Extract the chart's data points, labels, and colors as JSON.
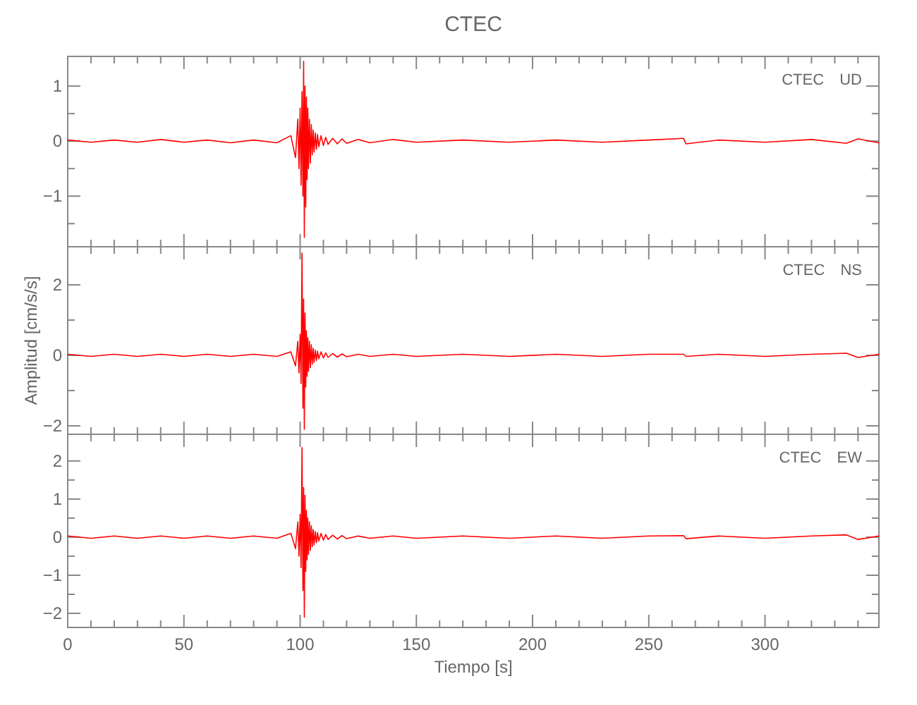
{
  "chart_data": [
    {
      "type": "line",
      "title": "CTEC",
      "annotations": [
        "CTEC UD"
      ],
      "tick_labels": "y",
      "x": [
        0,
        10,
        20,
        30,
        40,
        50,
        60,
        70,
        80,
        90,
        96,
        98,
        99,
        99.5,
        100,
        100.4,
        100.8,
        101.2,
        101.5,
        101.8,
        102.1,
        102.4,
        102.7,
        103,
        103.3,
        103.6,
        104,
        104.4,
        104.8,
        105.2,
        105.6,
        106,
        106.5,
        107,
        107.5,
        108,
        109,
        110,
        111,
        112,
        114,
        116,
        118,
        120,
        125,
        130,
        140,
        150,
        170,
        190,
        210,
        230,
        250,
        265,
        266,
        280,
        300,
        320,
        335,
        340,
        349
      ],
      "series": [
        {
          "color": "#ff0000",
          "values": [
            0.02,
            -0.02,
            0.02,
            -0.02,
            0.03,
            -0.02,
            0.02,
            -0.03,
            0.02,
            -0.03,
            0.1,
            -0.3,
            0.4,
            -0.5,
            0.6,
            -0.8,
            0.9,
            -1.0,
            1.45,
            -1.75,
            1.0,
            -1.2,
            0.8,
            -0.7,
            0.6,
            -0.5,
            0.4,
            -0.4,
            0.3,
            -0.25,
            0.2,
            -0.2,
            0.15,
            -0.15,
            0.12,
            -0.1,
            0.1,
            -0.08,
            0.07,
            -0.06,
            0.05,
            -0.05,
            0.04,
            -0.04,
            0.03,
            -0.03,
            0.03,
            -0.02,
            0.02,
            -0.02,
            0.02,
            -0.02,
            0.02,
            0.05,
            -0.05,
            0.02,
            -0.02,
            0.03,
            -0.04,
            0.04,
            -0.03
          ]
        }
      ],
      "xlim": [
        0,
        349
      ],
      "ylim": [
        -1.92,
        1.54
      ],
      "xticks": [
        0,
        {
          "value": 10,
          "label": null
        },
        {
          "value": 20,
          "label": null
        },
        {
          "value": 30,
          "label": null
        },
        {
          "value": 40,
          "label": null
        },
        50,
        {
          "value": 60,
          "label": null
        },
        {
          "value": 70,
          "label": null
        },
        {
          "value": 80,
          "label": null
        },
        {
          "value": 90,
          "label": null
        },
        100,
        {
          "value": 110,
          "label": null
        },
        {
          "value": 120,
          "label": null
        },
        {
          "value": 130,
          "label": null
        },
        {
          "value": 140,
          "label": null
        },
        150,
        {
          "value": 160,
          "label": null
        },
        {
          "value": 170,
          "label": null
        },
        {
          "value": 180,
          "label": null
        },
        {
          "value": 190,
          "label": null
        },
        200,
        {
          "value": 210,
          "label": null
        },
        {
          "value": 220,
          "label": null
        },
        {
          "value": 230,
          "label": null
        },
        {
          "value": 240,
          "label": null
        },
        250,
        {
          "value": 260,
          "label": null
        },
        {
          "value": 270,
          "label": null
        },
        {
          "value": 280,
          "label": null
        },
        {
          "value": 290,
          "label": null
        },
        300,
        {
          "value": 310,
          "label": null
        },
        {
          "value": 320,
          "label": null
        },
        {
          "value": 330,
          "label": null
        },
        {
          "value": 340,
          "label": null
        }
      ],
      "yticks": [
        {
          "value": -1.5,
          "label": null
        },
        -1,
        {
          "value": -0.5,
          "label": null
        },
        0,
        {
          "value": 0.5,
          "label": null
        },
        1
      ]
    },
    {
      "type": "line",
      "ylabel": "Amplitud [cm/s/s]",
      "annotations": [
        "CTEC NS"
      ],
      "tick_labels": "y",
      "x": [
        0,
        10,
        20,
        30,
        40,
        50,
        60,
        70,
        80,
        90,
        96,
        98,
        99,
        99.5,
        100,
        100.4,
        100.8,
        101.2,
        101.5,
        101.8,
        102.1,
        102.4,
        102.7,
        103,
        103.3,
        103.6,
        104,
        104.4,
        104.8,
        105.2,
        105.6,
        106,
        106.5,
        107,
        107.5,
        108,
        109,
        110,
        111,
        112,
        114,
        116,
        118,
        120,
        125,
        130,
        140,
        150,
        170,
        190,
        210,
        230,
        250,
        265,
        266,
        280,
        300,
        320,
        335,
        340,
        349
      ],
      "series": [
        {
          "color": "#ff0000",
          "values": [
            0.03,
            -0.03,
            0.03,
            -0.03,
            0.03,
            -0.03,
            0.03,
            -0.03,
            0.03,
            -0.03,
            0.1,
            -0.3,
            0.4,
            -0.5,
            0.6,
            -0.8,
            2.9,
            -1.5,
            1.6,
            -2.1,
            1.2,
            -0.9,
            0.7,
            -0.6,
            0.5,
            -0.45,
            0.4,
            -0.35,
            0.3,
            -0.25,
            0.2,
            -0.2,
            0.15,
            -0.15,
            0.12,
            -0.1,
            0.1,
            -0.08,
            0.07,
            -0.06,
            0.05,
            -0.05,
            0.04,
            -0.04,
            0.03,
            -0.03,
            0.03,
            -0.03,
            0.03,
            -0.03,
            0.03,
            -0.03,
            0.03,
            0.03,
            -0.03,
            0.03,
            -0.03,
            0.03,
            0.06,
            -0.06,
            0.03
          ]
        }
      ],
      "xlim": [
        0,
        349
      ],
      "ylim": [
        -2.24,
        3.08
      ],
      "xticks": [
        0,
        {
          "value": 10,
          "label": null
        },
        {
          "value": 20,
          "label": null
        },
        {
          "value": 30,
          "label": null
        },
        {
          "value": 40,
          "label": null
        },
        50,
        {
          "value": 60,
          "label": null
        },
        {
          "value": 70,
          "label": null
        },
        {
          "value": 80,
          "label": null
        },
        {
          "value": 90,
          "label": null
        },
        100,
        {
          "value": 110,
          "label": null
        },
        {
          "value": 120,
          "label": null
        },
        {
          "value": 130,
          "label": null
        },
        {
          "value": 140,
          "label": null
        },
        150,
        {
          "value": 160,
          "label": null
        },
        {
          "value": 170,
          "label": null
        },
        {
          "value": 180,
          "label": null
        },
        {
          "value": 190,
          "label": null
        },
        200,
        {
          "value": 210,
          "label": null
        },
        {
          "value": 220,
          "label": null
        },
        {
          "value": 230,
          "label": null
        },
        {
          "value": 240,
          "label": null
        },
        250,
        {
          "value": 260,
          "label": null
        },
        {
          "value": 270,
          "label": null
        },
        {
          "value": 280,
          "label": null
        },
        {
          "value": 290,
          "label": null
        },
        300,
        {
          "value": 310,
          "label": null
        },
        {
          "value": 320,
          "label": null
        },
        {
          "value": 330,
          "label": null
        },
        {
          "value": 340,
          "label": null
        }
      ],
      "yticks": [
        -2,
        {
          "value": -1,
          "label": null
        },
        0,
        {
          "value": 1,
          "label": null
        },
        2
      ]
    },
    {
      "type": "line",
      "xlabel": "Tiempo [s]",
      "annotations": [
        "CTEC EW"
      ],
      "x": [
        0,
        10,
        20,
        30,
        40,
        50,
        60,
        70,
        80,
        90,
        96,
        98,
        99,
        99.5,
        100,
        100.4,
        100.8,
        101.2,
        101.5,
        101.8,
        102.1,
        102.4,
        102.7,
        103,
        103.3,
        103.6,
        104,
        104.4,
        104.8,
        105.2,
        105.6,
        106,
        106.5,
        107,
        107.5,
        108,
        109,
        110,
        111,
        112,
        114,
        116,
        118,
        120,
        125,
        130,
        140,
        150,
        170,
        190,
        210,
        230,
        250,
        265,
        266,
        280,
        300,
        320,
        335,
        340,
        349
      ],
      "series": [
        {
          "color": "#ff0000",
          "values": [
            0.03,
            -0.03,
            0.03,
            -0.03,
            0.03,
            -0.03,
            0.03,
            -0.03,
            0.03,
            -0.03,
            0.1,
            -0.3,
            0.4,
            -0.5,
            0.6,
            -0.8,
            2.35,
            -1.4,
            1.3,
            -2.1,
            1.1,
            -0.9,
            0.7,
            -0.6,
            0.5,
            -0.45,
            0.4,
            -0.35,
            0.3,
            -0.25,
            0.2,
            -0.2,
            0.15,
            -0.15,
            0.12,
            -0.1,
            0.1,
            -0.08,
            0.07,
            -0.06,
            0.05,
            -0.05,
            0.04,
            -0.04,
            0.03,
            -0.03,
            0.03,
            -0.03,
            0.03,
            -0.03,
            0.03,
            -0.03,
            0.03,
            0.04,
            -0.04,
            0.03,
            -0.03,
            0.03,
            0.06,
            -0.06,
            0.03
          ]
        }
      ],
      "xlim": [
        0,
        349
      ],
      "ylim": [
        -2.37,
        2.7
      ],
      "xticks": [
        0,
        {
          "value": 10,
          "label": null
        },
        {
          "value": 20,
          "label": null
        },
        {
          "value": 30,
          "label": null
        },
        {
          "value": 40,
          "label": null
        },
        50,
        {
          "value": 60,
          "label": null
        },
        {
          "value": 70,
          "label": null
        },
        {
          "value": 80,
          "label": null
        },
        {
          "value": 90,
          "label": null
        },
        100,
        {
          "value": 110,
          "label": null
        },
        {
          "value": 120,
          "label": null
        },
        {
          "value": 130,
          "label": null
        },
        {
          "value": 140,
          "label": null
        },
        150,
        {
          "value": 160,
          "label": null
        },
        {
          "value": 170,
          "label": null
        },
        {
          "value": 180,
          "label": null
        },
        {
          "value": 190,
          "label": null
        },
        200,
        {
          "value": 210,
          "label": null
        },
        {
          "value": 220,
          "label": null
        },
        {
          "value": 230,
          "label": null
        },
        {
          "value": 240,
          "label": null
        },
        250,
        {
          "value": 260,
          "label": null
        },
        {
          "value": 270,
          "label": null
        },
        {
          "value": 280,
          "label": null
        },
        {
          "value": 290,
          "label": null
        },
        300,
        {
          "value": 310,
          "label": null
        },
        {
          "value": 320,
          "label": null
        },
        {
          "value": 330,
          "label": null
        },
        {
          "value": 340,
          "label": null
        }
      ],
      "yticks": [
        -2,
        {
          "value": -1.5,
          "label": null
        },
        -1,
        {
          "value": -0.5,
          "label": null
        },
        0,
        {
          "value": 0.5,
          "label": null
        },
        1,
        {
          "value": 1.5,
          "label": null
        },
        2
      ]
    }
  ]
}
